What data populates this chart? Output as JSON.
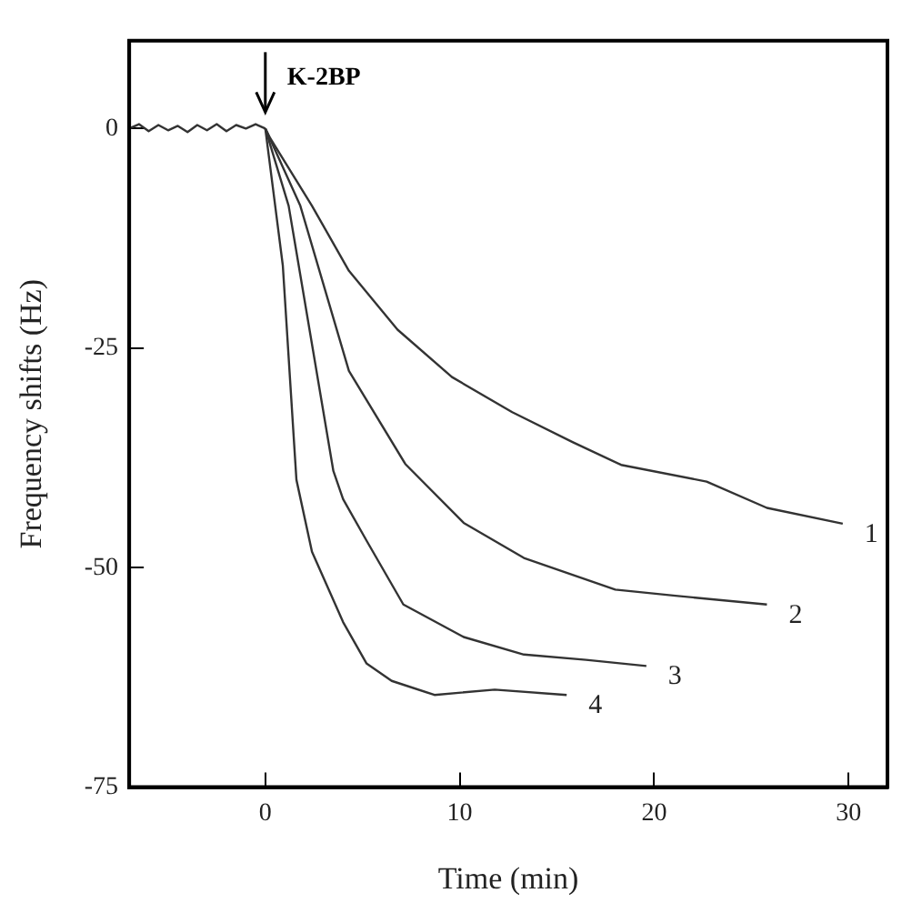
{
  "chart_data": {
    "type": "line",
    "xlabel": "Time (min)",
    "ylabel": "Frequency shifts (Hz)",
    "xlim": [
      -7,
      32
    ],
    "ylim": [
      -75,
      10
    ],
    "xticks": [
      0,
      10,
      20,
      30
    ],
    "yticks": [
      0,
      -25,
      -50,
      -75
    ],
    "grid": false,
    "legend": false,
    "marker": "none",
    "line_style": "solid",
    "annotations": [
      "K-2BP"
    ],
    "series": [
      {
        "color": "#333333",
        "x": [
          -7,
          -6.5,
          -6,
          -5.5,
          -5,
          -4.5,
          -4,
          -3.5,
          -3,
          -2.5,
          -2,
          -1.5,
          -1,
          -0.5,
          0
        ],
        "values": [
          0,
          0.5,
          -0.3,
          0.4,
          -0.2,
          0.3,
          -0.4,
          0.4,
          -0.2,
          0.5,
          -0.3,
          0.4,
          0,
          0.5,
          0
        ]
      },
      {
        "name": "1",
        "color": "#333333",
        "x": [
          0,
          0.25,
          2.4,
          4.3,
          6.8,
          9.6,
          12.7,
          15.8,
          18.3,
          22.7,
          25.8,
          29.7
        ],
        "values": [
          0,
          -1.1,
          -8.8,
          -16.2,
          -22.9,
          -28.3,
          -32.3,
          -35.7,
          -38.3,
          -40.2,
          -43.2,
          -45
        ]
      },
      {
        "name": "2",
        "color": "#333333",
        "x": [
          0,
          1.8,
          4.3,
          7.2,
          10.2,
          13.3,
          18,
          21.1,
          25.8
        ],
        "values": [
          0,
          -8.8,
          -27.6,
          -38.2,
          -44.9,
          -48.9,
          -52.5,
          -53.2,
          -54.2
        ]
      },
      {
        "name": "3",
        "color": "#333333",
        "x": [
          0,
          1.2,
          3.5,
          4,
          5.2,
          7.1,
          10.2,
          13.3,
          16.5,
          19.6
        ],
        "values": [
          0,
          -8.8,
          -39,
          -42.2,
          -46.9,
          -54.2,
          -57.9,
          -59.9,
          -60.5,
          -61.2
        ]
      },
      {
        "name": "4",
        "color": "#333333",
        "x": [
          0,
          0.9,
          1.6,
          2.4,
          4,
          5.2,
          6.5,
          8.7,
          11.8,
          15.5
        ],
        "values": [
          0,
          -15.6,
          -40,
          -48.2,
          -56.2,
          -60.9,
          -62.9,
          -64.5,
          -63.9,
          -64.5
        ]
      }
    ]
  }
}
